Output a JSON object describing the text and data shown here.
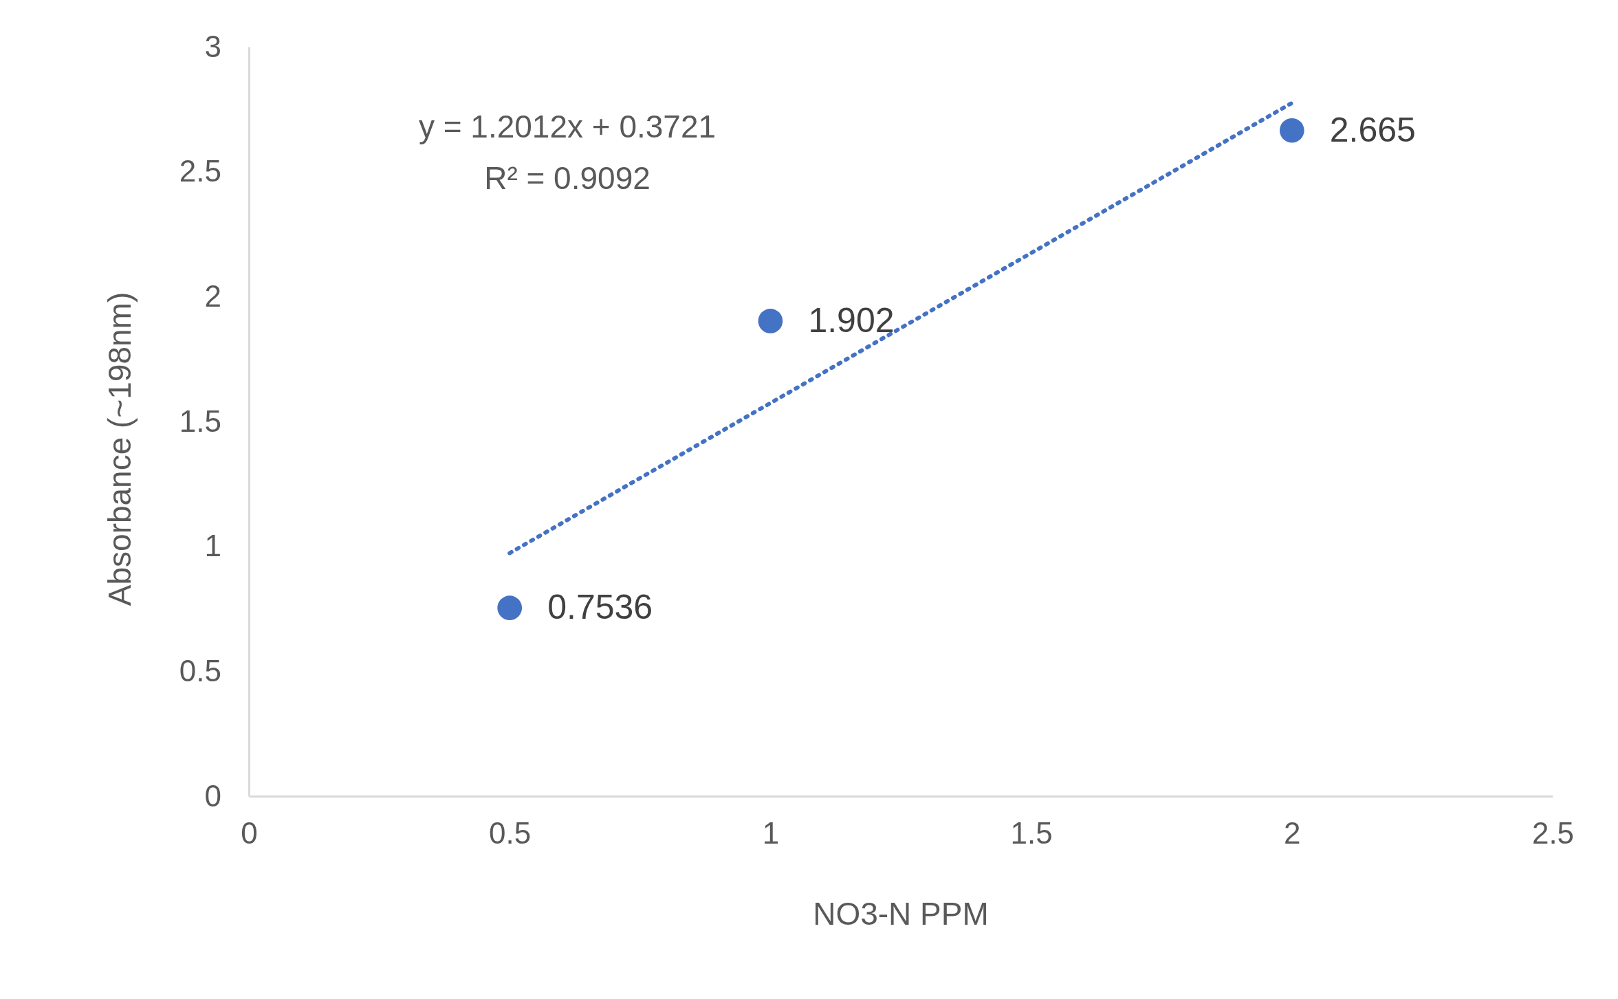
{
  "chart_data": {
    "type": "scatter",
    "xlabel": "NO3-N PPM",
    "ylabel": "Absorbance (~198nm)",
    "xlim": [
      0,
      2.5
    ],
    "xticks": [
      0,
      0.5,
      1,
      1.5,
      2,
      2.5
    ],
    "ylim": [
      0,
      3
    ],
    "yticks": [
      0,
      0.5,
      1,
      1.5,
      2,
      2.5,
      3
    ],
    "grid": false,
    "annotations": [
      "y = 1.2012x + 0.3721",
      "R² = 0.9092"
    ],
    "series": [
      {
        "color": "#4472c4",
        "marker": "circle",
        "x": [
          0.5,
          1,
          2
        ],
        "values": [
          0.7536,
          1.902,
          2.665
        ],
        "value_labels": [
          "0.7536",
          "1.902",
          "2.665"
        ]
      },
      {
        "type": "line",
        "color": "#4472c4",
        "line_style": "dotted",
        "x": [
          0.5,
          2
        ],
        "values": [
          0.973,
          2.775
        ]
      }
    ]
  }
}
